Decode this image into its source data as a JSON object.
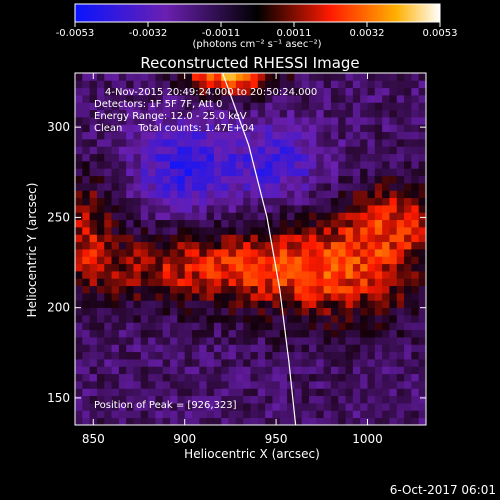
{
  "chart_data": {
    "type": "heatmap",
    "title": "Reconstructed RHESSI Image",
    "xlabel": "Heliocentric X (arcsec)",
    "ylabel": "Heliocentric Y (arcsec)",
    "xlim": [
      840,
      1032
    ],
    "ylim": [
      135,
      330
    ],
    "x_ticks": [
      850,
      900,
      950,
      1000
    ],
    "y_ticks": [
      150,
      200,
      250,
      300
    ],
    "colorbar": {
      "range": [
        -0.0053,
        0.0053
      ],
      "ticks": [
        "-0.0053",
        "-0.0032",
        "-0.0011",
        "0.0011",
        "0.0032",
        "0.0053"
      ],
      "units_label": "(photons cm⁻² s⁻¹ asec⁻²)"
    },
    "annotations": [
      "4-Nov-2015 20:49:24.000 to 20:50:24.000",
      "Detectors: 1F 5F 7F, Att 0",
      "Energy Range: 12.0 - 25.0 keV",
      "Clean     Total counts: 1.47E+04"
    ],
    "peak_label": "Position of Peak = [926,323]",
    "limb_curve": [
      [
        920,
        332
      ],
      [
        935,
        290
      ],
      [
        945,
        250
      ],
      [
        952,
        210
      ],
      [
        957,
        170
      ],
      [
        961,
        132
      ]
    ],
    "blobs": [
      {
        "x": 925,
        "y": 333,
        "sx": 18,
        "sy": 10,
        "amp": 1.0
      },
      {
        "x": 905,
        "y": 222,
        "sx": 45,
        "sy": 15,
        "amp": 0.55
      },
      {
        "x": 985,
        "y": 222,
        "sx": 35,
        "sy": 22,
        "amp": 0.6
      },
      {
        "x": 845,
        "y": 245,
        "sx": 12,
        "sy": 22,
        "amp": 0.45
      },
      {
        "x": 1015,
        "y": 250,
        "sx": 18,
        "sy": 15,
        "amp": 0.45
      },
      {
        "x": 900,
        "y": 278,
        "sx": 18,
        "sy": 18,
        "amp": -0.55
      },
      {
        "x": 950,
        "y": 280,
        "sx": 18,
        "sy": 15,
        "amp": -0.45
      }
    ],
    "background_level": -0.28
  },
  "footer": {
    "date": "6-Oct-2017 06:01"
  }
}
